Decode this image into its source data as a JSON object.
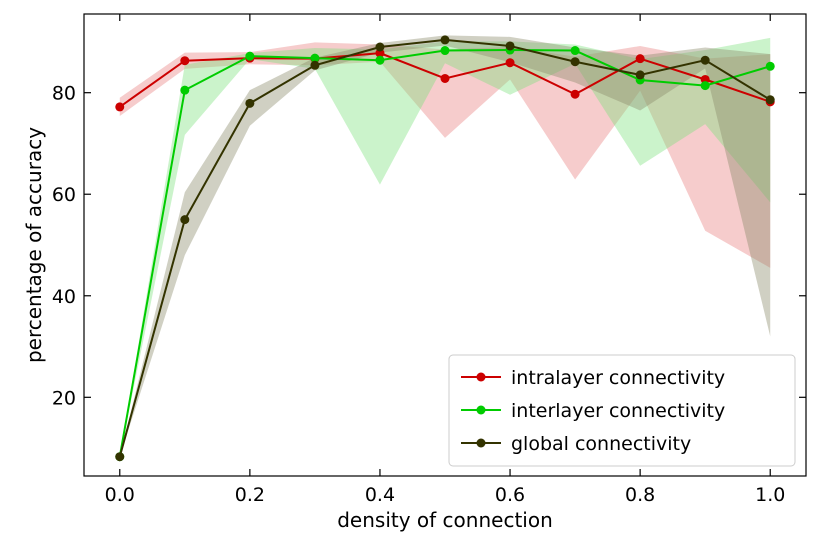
{
  "chart_data": {
    "type": "line",
    "title": "",
    "xlabel": "density of connection",
    "ylabel": "percentage of accuracy",
    "xlim": [
      -0.055,
      1.055
    ],
    "ylim": [
      4.5,
      95.5
    ],
    "x": [
      0.0,
      0.1,
      0.2,
      0.3,
      0.4,
      0.5,
      0.6,
      0.7,
      0.8,
      0.9,
      1.0
    ],
    "xticks": [
      0.0,
      0.2,
      0.4,
      0.6,
      0.8,
      1.0
    ],
    "xtick_labels": [
      "0.0",
      "0.2",
      "0.4",
      "0.6",
      "0.8",
      "1.0"
    ],
    "yticks": [
      20,
      40,
      60,
      80
    ],
    "ytick_labels": [
      "20",
      "40",
      "60",
      "80"
    ],
    "legend_position": "bottom-right",
    "series": [
      {
        "name": "intralayer connectivity",
        "color": "#cc0000",
        "fill_color": "#e88080",
        "values": [
          77.2,
          86.3,
          86.8,
          86.7,
          87.8,
          82.8,
          85.9,
          79.7,
          86.7,
          82.6,
          78.2
        ],
        "lower": [
          75.4,
          84.7,
          85.6,
          85.4,
          86.1,
          71.1,
          82.6,
          62.9,
          80.4,
          52.8,
          45.5
        ],
        "upper": [
          79.0,
          87.9,
          88.0,
          89.9,
          89.5,
          88.5,
          89.0,
          87.1,
          89.2,
          86.7,
          87.6
        ]
      },
      {
        "name": "interlayer connectivity",
        "color": "#00cc00",
        "fill_color": "#7ee07e",
        "values": [
          8.3,
          80.5,
          87.2,
          86.8,
          86.4,
          88.3,
          88.4,
          88.3,
          82.5,
          81.4,
          85.2
        ],
        "lower": [
          8.3,
          71.7,
          86.6,
          84.7,
          61.9,
          85.8,
          79.6,
          85.7,
          65.6,
          73.8,
          58.4
        ],
        "upper": [
          8.3,
          85.5,
          87.8,
          88.8,
          88.5,
          90.1,
          90.1,
          89.5,
          86.6,
          88.4,
          90.8
        ]
      },
      {
        "name": "global connectivity",
        "color": "#333300",
        "fill_color": "#8a8a6a",
        "values": [
          8.3,
          55.0,
          77.9,
          85.4,
          89.0,
          90.4,
          89.2,
          86.1,
          83.5,
          86.4,
          78.6
        ],
        "lower": [
          8.3,
          48.0,
          73.5,
          84.4,
          87.9,
          89.3,
          86.0,
          82.0,
          76.5,
          84.8,
          32.0
        ],
        "upper": [
          8.3,
          60.4,
          80.5,
          86.9,
          89.8,
          91.3,
          91.0,
          88.9,
          87.3,
          88.9,
          87.6
        ]
      }
    ]
  }
}
